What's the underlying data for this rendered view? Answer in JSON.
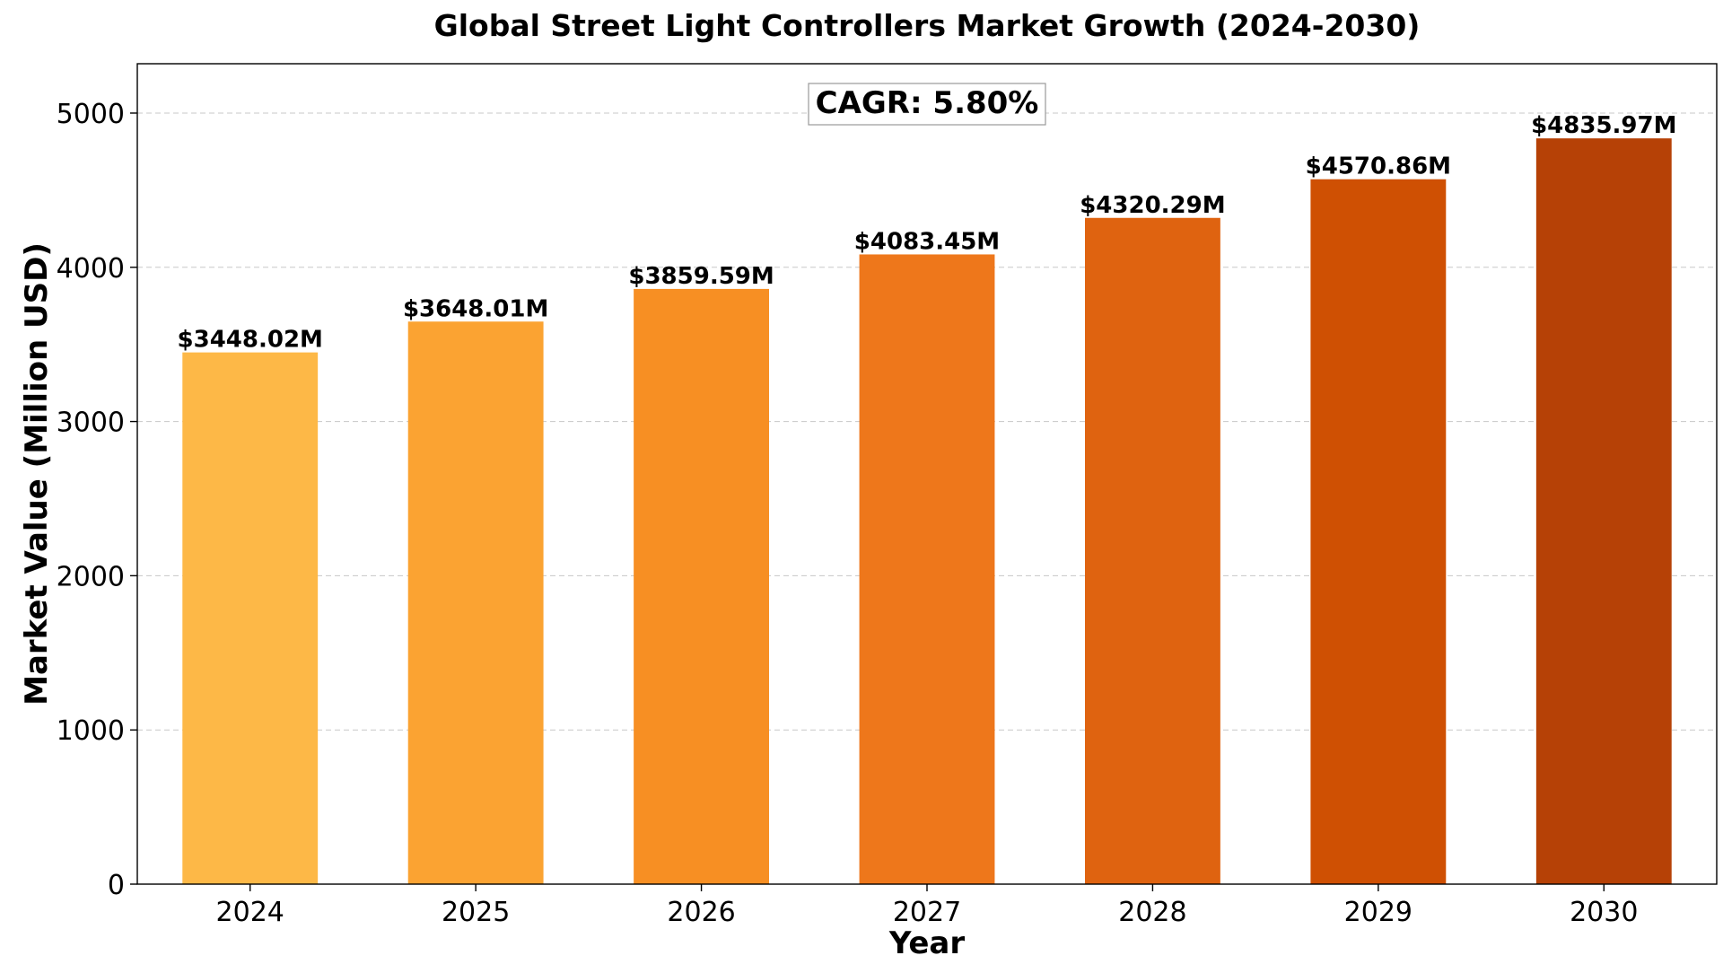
{
  "chart_data": {
    "type": "bar",
    "title": "Global Street Light Controllers Market Growth (2024-2030)",
    "xlabel": "Year",
    "ylabel": "Market Value (Million USD)",
    "categories": [
      "2024",
      "2025",
      "2026",
      "2027",
      "2028",
      "2029",
      "2030"
    ],
    "values": [
      3448.02,
      3648.01,
      3859.59,
      4083.45,
      4320.29,
      4570.86,
      4835.97
    ],
    "data_labels": [
      "$3448.02M",
      "$3648.01M",
      "$3859.59M",
      "$4083.45M",
      "$4320.29M",
      "$4570.86M",
      "$4835.97M"
    ],
    "bar_colors": [
      "#fdb847",
      "#fba332",
      "#f78f23",
      "#ee771b",
      "#df6310",
      "#cf5003",
      "#b64106"
    ],
    "ylim": [
      0,
      5320
    ],
    "yticks": [
      0,
      1000,
      2000,
      3000,
      4000,
      5000
    ],
    "grid": "y-dashed",
    "legend": "none",
    "annotation": "CAGR: 5.80%"
  }
}
